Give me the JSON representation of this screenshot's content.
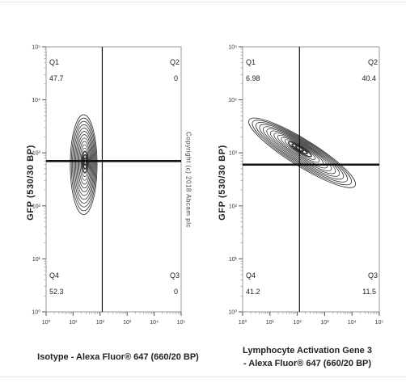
{
  "copyright": "Copyright (c) 2018 Abcam plc",
  "chart_data": [
    {
      "type": "contour",
      "xlabel": "Isotype - Alexa Fluor® 647 (660/20 BP)",
      "xlabel_lines": [
        "Isotype - Alexa Fluor® 647 (660/20 BP)"
      ],
      "ylabel": "GFP (530/30 BP)",
      "x_scale": "log",
      "y_scale": "log",
      "xlim": [
        1,
        100000
      ],
      "ylim": [
        1,
        100000
      ],
      "x_ticks": [
        "10⁰",
        "10¹",
        "10²",
        "10³",
        "10⁴",
        "10⁵"
      ],
      "y_ticks": [
        "10⁰",
        "10¹",
        "10²",
        "10³",
        "10⁴",
        "10⁵"
      ],
      "gate_x": 120,
      "gate_y": 700,
      "quadrants": [
        {
          "name": "Q1",
          "value": "47.7",
          "position": "top-left"
        },
        {
          "name": "Q2",
          "value": "0",
          "position": "top-right"
        },
        {
          "name": "Q3",
          "value": "0",
          "position": "bottom-right"
        },
        {
          "name": "Q4",
          "value": "52.3",
          "position": "bottom-left"
        }
      ],
      "population": {
        "center_x": 20,
        "center_y": 600,
        "sigma_log_x": 0.5,
        "sigma_log_y": 0.62,
        "corr": 0.0
      }
    },
    {
      "type": "contour",
      "xlabel": "Lymphocyte Activation Gene 3 - Alexa Fluor® 647 (660/20 BP)",
      "xlabel_lines": [
        "Lymphocyte Activation Gene 3",
        "- Alexa Fluor® 647 (660/20 BP)"
      ],
      "ylabel": "GFP (530/30 BP)",
      "x_scale": "log",
      "y_scale": "log",
      "xlim": [
        1,
        100000
      ],
      "ylim": [
        1,
        100000
      ],
      "x_ticks": [
        "10⁰",
        "10¹",
        "10²",
        "10³",
        "10⁴",
        "10⁵"
      ],
      "y_ticks": [
        "10⁰",
        "10¹",
        "10²",
        "10³",
        "10⁴",
        "10⁵"
      ],
      "gate_x": 120,
      "gate_y": 600,
      "quadrants": [
        {
          "name": "Q1",
          "value": "6.98",
          "position": "top-left"
        },
        {
          "name": "Q2",
          "value": "40.4",
          "position": "top-right"
        },
        {
          "name": "Q3",
          "value": "11.5",
          "position": "bottom-right"
        },
        {
          "name": "Q4",
          "value": "41.2",
          "position": "bottom-left"
        }
      ],
      "population": {
        "center_x": 150,
        "center_y": 1000,
        "sigma_log_x": 0.55,
        "sigma_log_y": 0.7,
        "corr": 0.85
      }
    }
  ]
}
